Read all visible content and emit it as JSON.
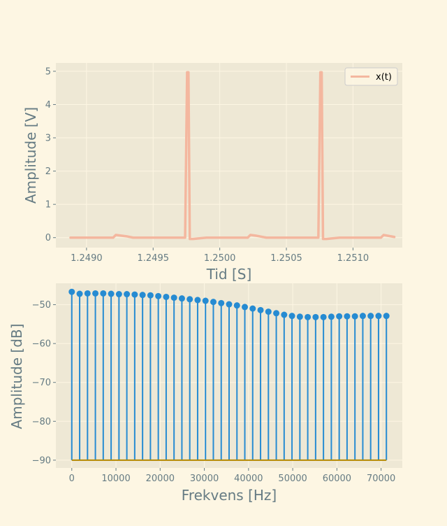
{
  "chart_data": [
    {
      "type": "line",
      "xlabel": "Tid [S]",
      "ylabel": "Amplitude [V]",
      "xlim": [
        1.24877,
        1.25137
      ],
      "ylim": [
        -0.3,
        5.25
      ],
      "xticks": [
        "1.2490",
        "1.2495",
        "1.2500",
        "1.2505",
        "1.2510"
      ],
      "yticks": [
        "0",
        "1",
        "2",
        "3",
        "4",
        "5"
      ],
      "grid": true,
      "legend_position": "top-right",
      "series": [
        {
          "name": "x(t)",
          "color": "#f4b79f",
          "x": [
            1.24888,
            1.2492,
            1.24922,
            1.24926,
            1.2493,
            1.24935,
            1.24974,
            1.249755,
            1.249765,
            1.249775,
            1.2498,
            1.2499,
            1.25021,
            1.25023,
            1.25027,
            1.25031,
            1.25035,
            1.25074,
            1.250755,
            1.250765,
            1.250775,
            1.2508,
            1.2509,
            1.25121,
            1.25123,
            1.25127,
            1.25131
          ],
          "y": [
            0.0,
            0.0,
            0.08,
            0.06,
            0.04,
            0.0,
            0.0,
            4.97,
            4.97,
            -0.04,
            -0.04,
            0.0,
            0.0,
            0.08,
            0.06,
            0.03,
            0.0,
            0.0,
            4.97,
            4.97,
            -0.04,
            -0.04,
            0.0,
            0.0,
            0.08,
            0.05,
            0.02
          ]
        }
      ]
    },
    {
      "type": "stem",
      "xlabel": "Frekvens [Hz]",
      "ylabel": "Amplitude [dB]",
      "xlim": [
        -3600,
        74800
      ],
      "ylim": [
        -92,
        -44.5
      ],
      "xticks": [
        "0",
        "10000",
        "20000",
        "30000",
        "40000",
        "50000",
        "60000",
        "70000"
      ],
      "yticks": [
        "-90",
        "-80",
        "-70",
        "-60",
        "-50"
      ],
      "baseline": -90,
      "grid": true,
      "series": [
        {
          "color": "#268bd2",
          "baseline_color": "#b58900",
          "x": [
            0,
            1780,
            3560,
            5340,
            7120,
            8900,
            10680,
            12460,
            14240,
            16020,
            17800,
            19580,
            21360,
            23140,
            24920,
            26700,
            28480,
            30260,
            32040,
            33820,
            35600,
            37380,
            39160,
            40940,
            42720,
            44500,
            46280,
            48060,
            49840,
            51620,
            53400,
            55180,
            56960,
            58740,
            60520,
            62300,
            64080,
            65860,
            67640,
            69420,
            71200
          ],
          "y": [
            -46.7,
            -47.2,
            -47.1,
            -47.1,
            -47.1,
            -47.2,
            -47.3,
            -47.3,
            -47.4,
            -47.5,
            -47.6,
            -47.8,
            -48.0,
            -48.2,
            -48.4,
            -48.6,
            -48.8,
            -49.0,
            -49.3,
            -49.6,
            -49.9,
            -50.2,
            -50.6,
            -51.0,
            -51.4,
            -51.8,
            -52.2,
            -52.6,
            -52.9,
            -53.1,
            -53.2,
            -53.2,
            -53.2,
            -53.1,
            -53.0,
            -53.0,
            -53.0,
            -52.9,
            -52.9,
            -52.9,
            -52.9
          ]
        }
      ]
    }
  ]
}
